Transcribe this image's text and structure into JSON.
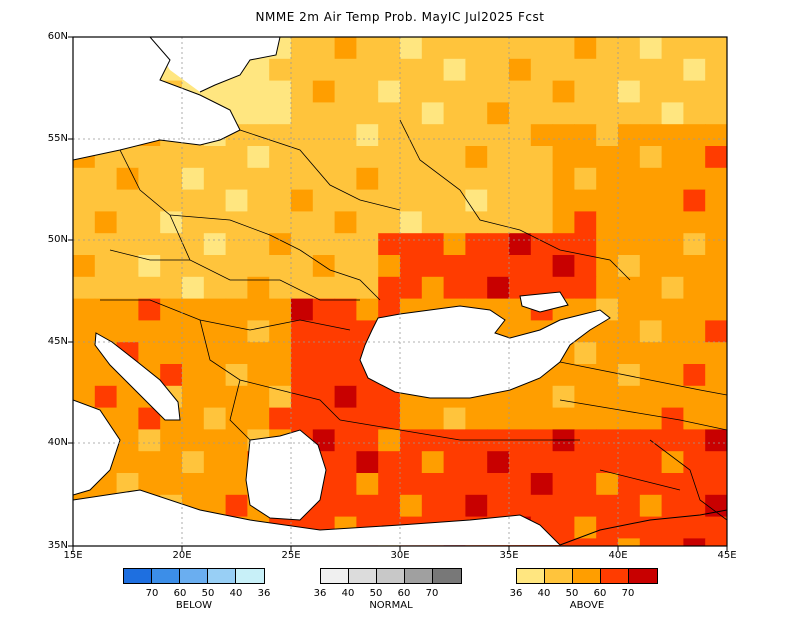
{
  "title": "NMME 2m Air Temp Prob. MayIC  Jul2025 Fcst",
  "latitude_labels": [
    "60N",
    "55N",
    "50N",
    "45N",
    "40N",
    "35N"
  ],
  "longitude_labels": [
    "15E",
    "20E",
    "25E",
    "30E",
    "35E",
    "40E",
    "45E"
  ],
  "legends": {
    "below": {
      "name": "BELOW",
      "ticks": [
        "70",
        "60",
        "50",
        "40",
        "36"
      ],
      "colors": [
        "#1e6fe0",
        "#3c8ee8",
        "#6aaef0",
        "#98cff5",
        "#c8f0f8"
      ]
    },
    "normal": {
      "name": "NORMAL",
      "ticks": [
        "36",
        "40",
        "50",
        "60",
        "70"
      ],
      "colors": [
        "#f0f0f0",
        "#dcdcdc",
        "#c8c8c8",
        "#a0a0a0",
        "#787878"
      ]
    },
    "above": {
      "name": "ABOVE",
      "ticks": [
        "36",
        "40",
        "50",
        "60",
        "70"
      ],
      "colors": [
        "#ffe680",
        "#ffc43c",
        "#ff9e00",
        "#ff3c00",
        "#c80000"
      ]
    }
  },
  "map_colors": {
    "sea": "#ffffff",
    "coast": "#000000",
    "grid": "#999999"
  }
}
